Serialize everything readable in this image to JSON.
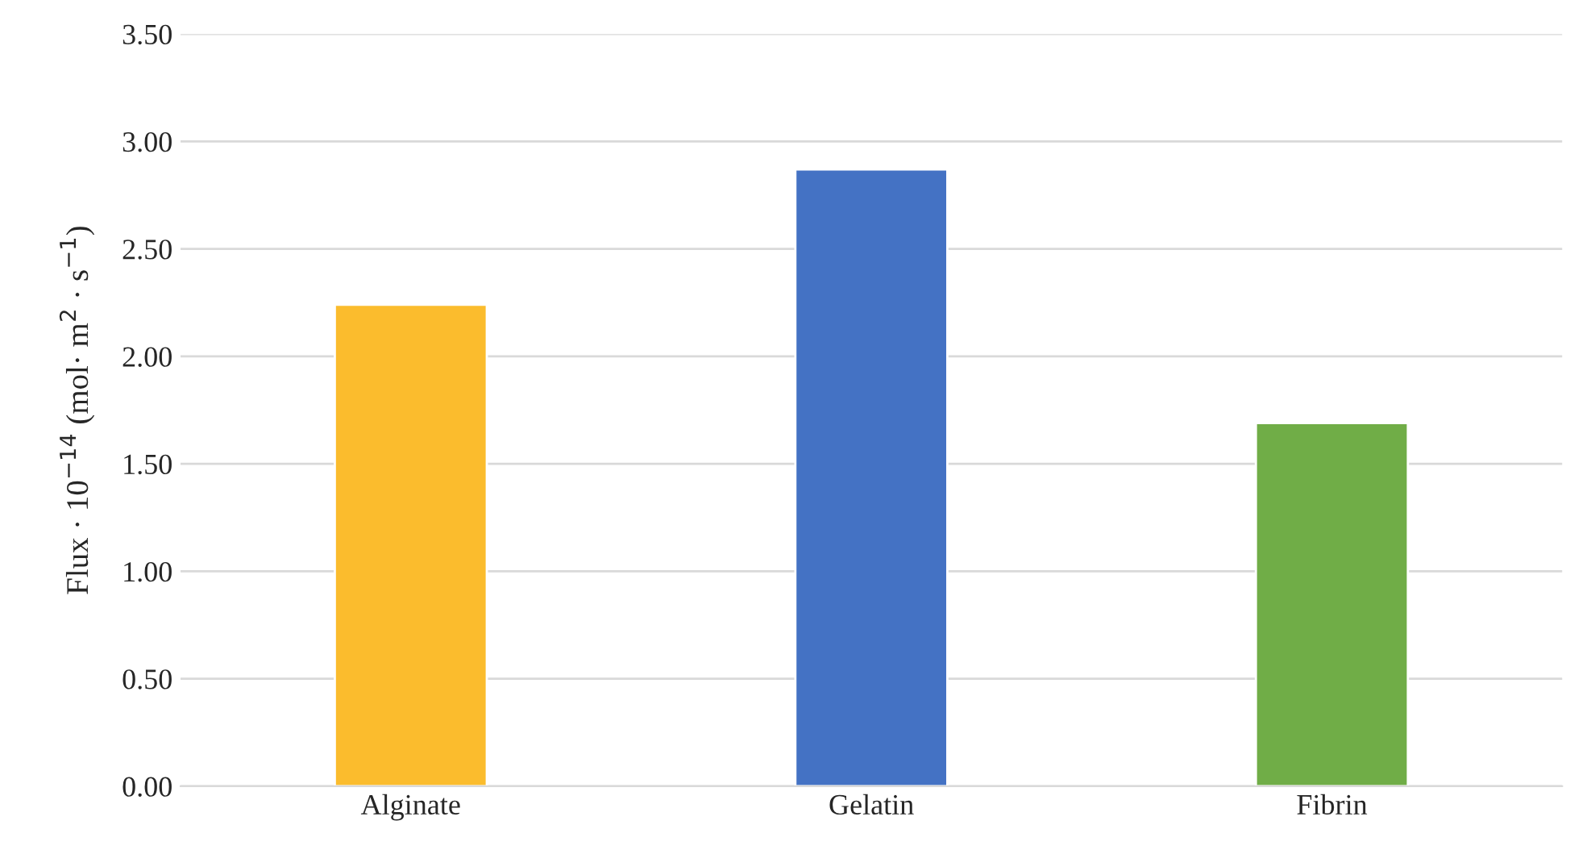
{
  "chart_data": {
    "type": "bar",
    "ylabel": "Flux · 10$^{−14}$ (mol· m$^{2}$ · s$^{−1}$)",
    "categories": [
      "Alginate",
      "Gelatin",
      "Fibrin"
    ],
    "values": [
      2.24,
      2.87,
      1.69
    ],
    "colors": [
      "#fbbc2d",
      "#4472c4",
      "#70ad47"
    ],
    "ylim": [
      0,
      3.5
    ],
    "yticks": [
      {
        "value": 0,
        "label": "0.00"
      },
      {
        "value": 0.5,
        "label": "0.50"
      },
      {
        "value": 1,
        "label": "1.00"
      },
      {
        "value": 1.5,
        "label": "1.50"
      },
      {
        "value": 2,
        "label": "2.00"
      },
      {
        "value": 2.5,
        "label": "2.50"
      },
      {
        "value": 3,
        "label": "3.00"
      },
      {
        "value": 3.5,
        "label": "3.50"
      }
    ],
    "grid": "y"
  }
}
